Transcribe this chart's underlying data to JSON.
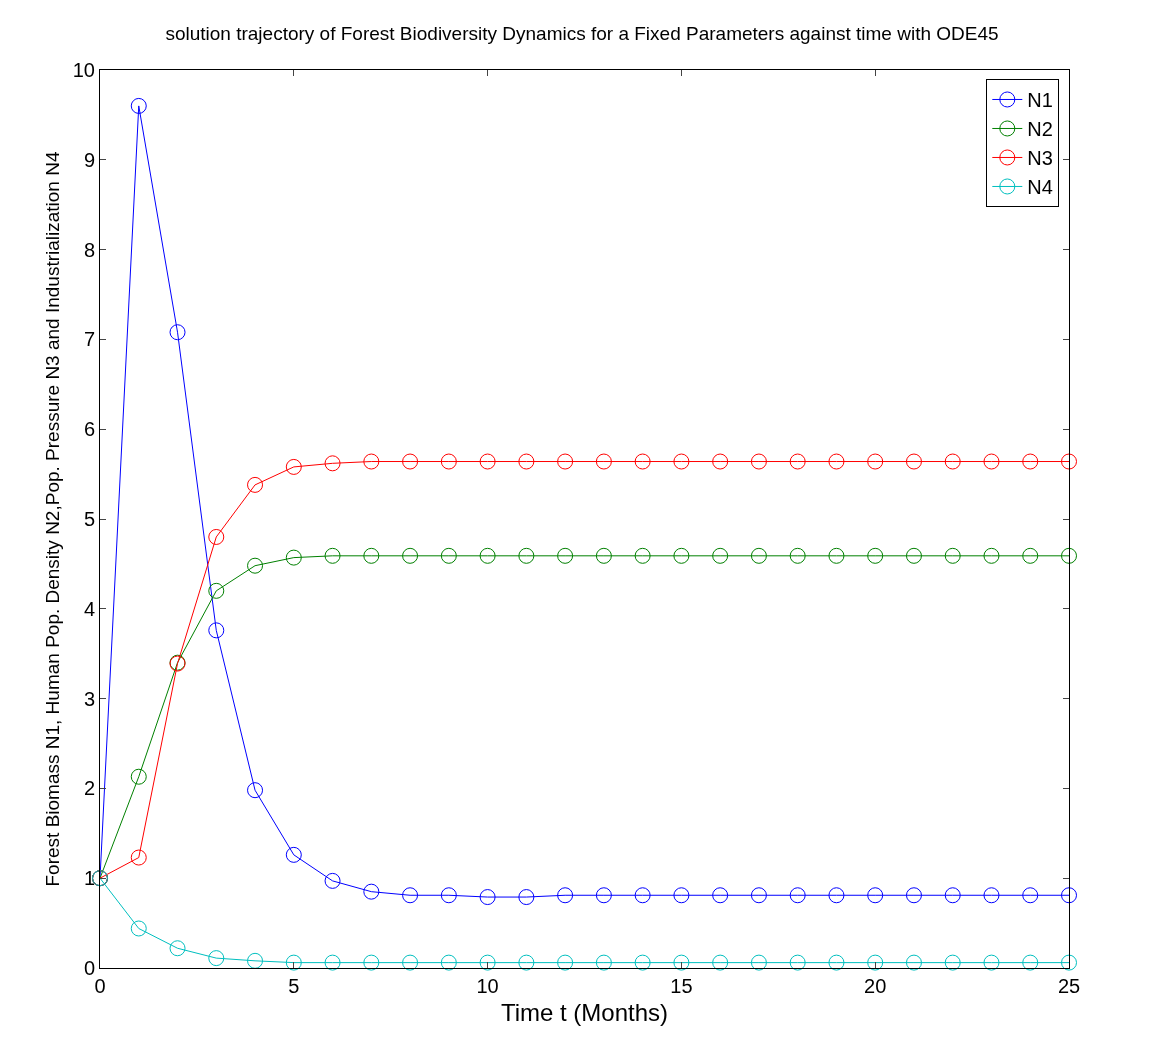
{
  "chart_data": {
    "type": "line",
    "title": "solution trajectory of Forest Biodiversity Dynamics for a Fixed Parameters against time with ODE45",
    "xlabel": "Time t (Months)",
    "ylabel": "Forest Biomass N1, Human Pop. Density N2,Pop. Pressure N3 and Industrialization N4",
    "x": [
      0,
      1,
      2,
      3,
      4,
      5,
      6,
      7,
      8,
      9,
      10,
      11,
      12,
      13,
      14,
      15,
      16,
      17,
      18,
      19,
      20,
      21,
      22,
      23,
      24,
      25
    ],
    "series": [
      {
        "name": "N1",
        "color": "#0000ff",
        "values": [
          1,
          9.6,
          7.08,
          3.76,
          1.98,
          1.26,
          0.97,
          0.85,
          0.81,
          0.81,
          0.79,
          0.79,
          0.81,
          0.81,
          0.81,
          0.81,
          0.81,
          0.81,
          0.81,
          0.81,
          0.81,
          0.81,
          0.81,
          0.81,
          0.81,
          0.81
        ]
      },
      {
        "name": "N2",
        "color": "#008000",
        "values": [
          1,
          2.13,
          3.4,
          4.2,
          4.48,
          4.57,
          4.59,
          4.59,
          4.59,
          4.59,
          4.59,
          4.59,
          4.59,
          4.59,
          4.59,
          4.59,
          4.59,
          4.59,
          4.59,
          4.59,
          4.59,
          4.59,
          4.59,
          4.59,
          4.59,
          4.59
        ]
      },
      {
        "name": "N3",
        "color": "#ff0000",
        "values": [
          1,
          1.23,
          3.39,
          4.8,
          5.38,
          5.58,
          5.62,
          5.64,
          5.64,
          5.64,
          5.64,
          5.64,
          5.64,
          5.64,
          5.64,
          5.64,
          5.64,
          5.64,
          5.64,
          5.64,
          5.64,
          5.64,
          5.64,
          5.64,
          5.64,
          5.64
        ]
      },
      {
        "name": "N4",
        "color": "#00bfbf",
        "values": [
          1,
          0.44,
          0.22,
          0.11,
          0.08,
          0.06,
          0.06,
          0.06,
          0.06,
          0.06,
          0.06,
          0.06,
          0.06,
          0.06,
          0.06,
          0.06,
          0.06,
          0.06,
          0.06,
          0.06,
          0.06,
          0.06,
          0.06,
          0.06,
          0.06,
          0.06
        ]
      }
    ],
    "xlim": [
      0,
      25
    ],
    "xticks": [
      0,
      5,
      10,
      15,
      20,
      25
    ],
    "ylim": [
      0,
      10
    ],
    "yticks": [
      0,
      1,
      2,
      3,
      4,
      5,
      6,
      7,
      8,
      9,
      10
    ],
    "grid": false,
    "legend": "top right",
    "marker": "circle",
    "line_style": "solid"
  }
}
